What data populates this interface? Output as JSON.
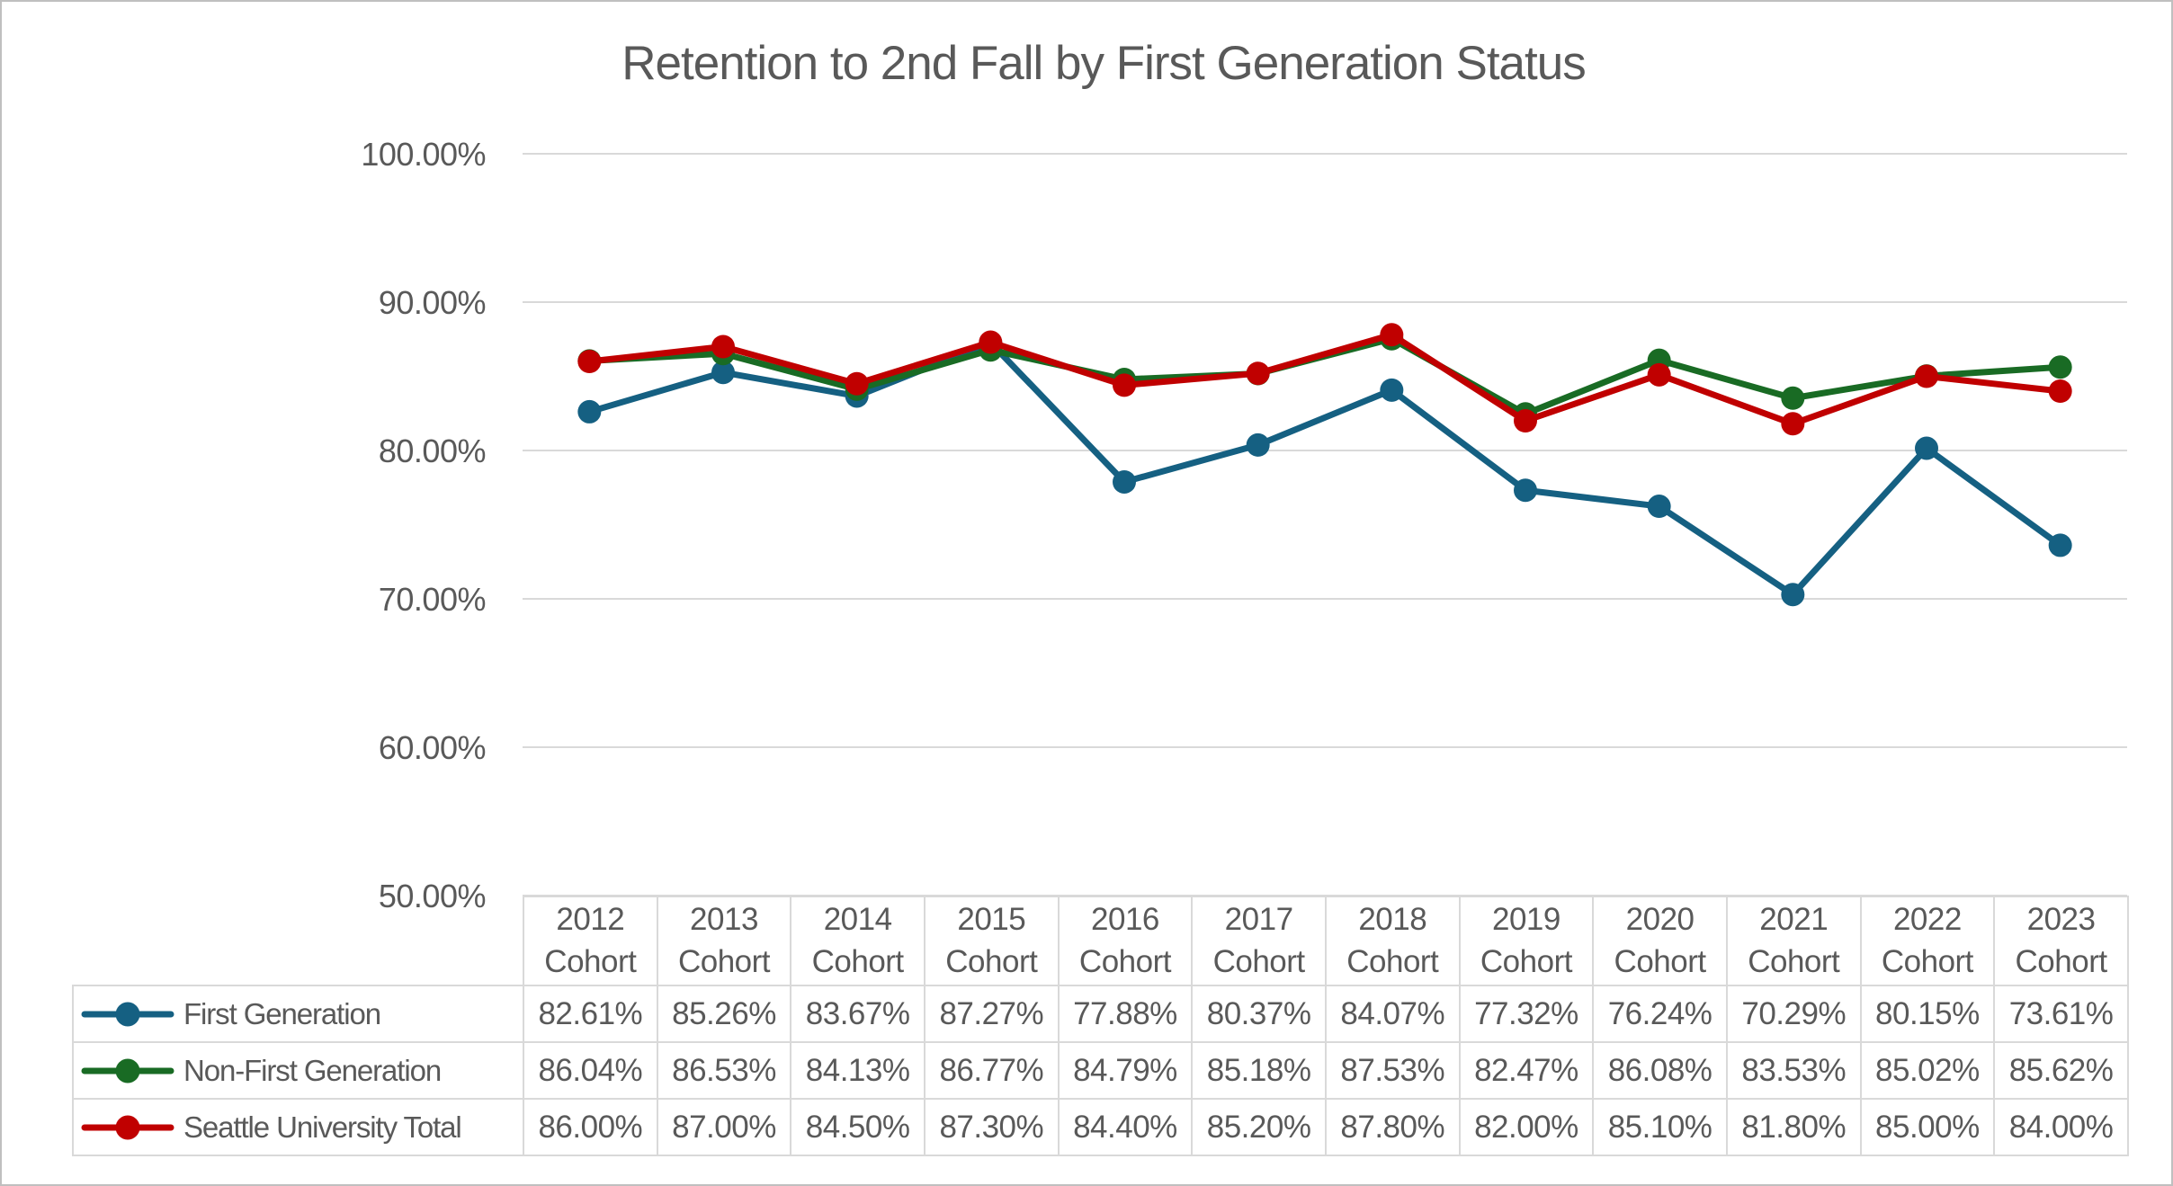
{
  "title": "Retention to 2nd Fall by First Generation Status",
  "colors": {
    "text": "#595959",
    "gridline": "#d9d9d9",
    "table_border": "#d9d9d9",
    "page_border": "#bfbfbf",
    "background": "#ffffff"
  },
  "chart_data": {
    "type": "line",
    "title": "Retention to 2nd Fall by First Generation Status",
    "categories": [
      "2012 Cohort",
      "2013 Cohort",
      "2014 Cohort",
      "2015 Cohort",
      "2016 Cohort",
      "2017 Cohort",
      "2018 Cohort",
      "2019 Cohort",
      "2020 Cohort",
      "2021 Cohort",
      "2022 Cohort",
      "2023 Cohort"
    ],
    "series": [
      {
        "name": "First Generation",
        "color": "#156082",
        "marker": "circle",
        "values": [
          82.61,
          85.26,
          83.67,
          87.27,
          77.88,
          80.37,
          84.07,
          77.32,
          76.24,
          70.29,
          80.15,
          73.61
        ]
      },
      {
        "name": "Non-First Generation",
        "color": "#196B24",
        "marker": "circle",
        "values": [
          86.04,
          86.53,
          84.13,
          86.77,
          84.79,
          85.18,
          87.53,
          82.47,
          86.08,
          83.53,
          85.02,
          85.62
        ]
      },
      {
        "name": "Seattle University Total",
        "color": "#C00000",
        "marker": "circle",
        "values": [
          86.0,
          87.0,
          84.5,
          87.3,
          84.4,
          85.2,
          87.8,
          82.0,
          85.1,
          81.8,
          85.0,
          84.0
        ]
      }
    ],
    "ylim": [
      50,
      100
    ],
    "y_tick_values": [
      100,
      90,
      80,
      70,
      60,
      50
    ],
    "y_tick_labels": [
      "100.00%",
      "90.00%",
      "80.00%",
      "70.00%",
      "60.00%",
      "50.00%"
    ],
    "value_format": "0.00%",
    "grid": true,
    "legend_position": "data-table-left"
  },
  "table": {
    "header_row": [
      "",
      "2012 Cohort",
      "2013 Cohort",
      "2014 Cohort",
      "2015 Cohort",
      "2016 Cohort",
      "2017 Cohort",
      "2018 Cohort",
      "2019 Cohort",
      "2020 Cohort",
      "2021 Cohort",
      "2022 Cohort",
      "2023 Cohort"
    ],
    "rows": [
      {
        "label": "First Generation",
        "cells": [
          "82.61%",
          "85.26%",
          "83.67%",
          "87.27%",
          "77.88%",
          "80.37%",
          "84.07%",
          "77.32%",
          "76.24%",
          "70.29%",
          "80.15%",
          "73.61%"
        ]
      },
      {
        "label": "Non-First Generation",
        "cells": [
          "86.04%",
          "86.53%",
          "84.13%",
          "86.77%",
          "84.79%",
          "85.18%",
          "87.53%",
          "82.47%",
          "86.08%",
          "83.53%",
          "85.02%",
          "85.62%"
        ]
      },
      {
        "label": "Seattle University Total",
        "cells": [
          "86.00%",
          "87.00%",
          "84.50%",
          "87.30%",
          "84.40%",
          "85.20%",
          "87.80%",
          "82.00%",
          "85.10%",
          "81.80%",
          "85.00%",
          "84.00%"
        ]
      }
    ]
  }
}
